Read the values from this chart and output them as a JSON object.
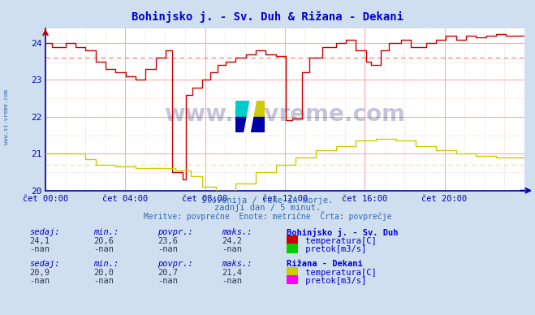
{
  "title": "Bohinjsko j. - Sv. Duh & Rižana - Dekani",
  "title_color": "#0000cc",
  "bg_color": "#d0dff0",
  "plot_bg_color": "#ffffff",
  "grid_color_major": "#ffaaaa",
  "grid_color_minor": "#ffdddd",
  "ylim": [
    20,
    24.4
  ],
  "yticks": [
    20,
    21,
    22,
    23,
    24
  ],
  "xlabel_color": "#0000aa",
  "xtick_labels": [
    "čet 00:00",
    "čet 04:00",
    "čet 08:00",
    "čet 12:00",
    "čet 16:00",
    "čet 20:00"
  ],
  "xtick_positions": [
    0,
    4,
    8,
    12,
    16,
    20
  ],
  "avg_line_red": 23.6,
  "avg_line_yellow": 20.7,
  "line1_color": "#cc0000",
  "line2_color": "#cccc00",
  "avg_color_red": "#ff8888",
  "avg_color_yellow": "#eeee88",
  "watermark": "www.si-vreme.com",
  "watermark_color": "#1a1a6e",
  "subtitle1": "Slovenija / reke in morje.",
  "subtitle2": "zadnji dan / 5 minut.",
  "subtitle3": "Meritve: povprečne  Enote: metrične  Črta: povprečje",
  "subtitle_color": "#3366aa",
  "table_label_color": "#0000cc",
  "table_val_color": "#333355",
  "station1_name": "Bohinjsko j. - Sv. Duh",
  "station1_sedaj": "24,1",
  "station1_min": "20,6",
  "station1_povpr": "23,6",
  "station1_maks": "24,2",
  "station1_temp_color": "#cc0000",
  "station1_pretok_color": "#00cc00",
  "station2_name": "Rižana - Dekani",
  "station2_sedaj": "20,9",
  "station2_min": "20,0",
  "station2_povpr": "20,7",
  "station2_maks": "21,4",
  "station2_temp_color": "#cccc00",
  "station2_pretok_color": "#ff00ff",
  "left_label": "www.si-vreme.com",
  "left_label_color": "#3366aa"
}
